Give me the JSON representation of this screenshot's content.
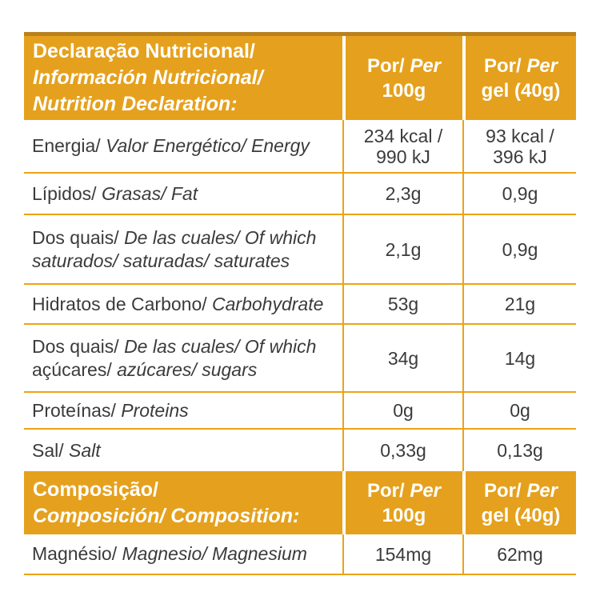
{
  "colors": {
    "header_fill": "#e5a11d",
    "header_top_strip": "#b9811f",
    "rule_orange": "#eda315",
    "text_dark": "#3b3b3a",
    "text_header": "#ffffff",
    "background": "#ffffff"
  },
  "table": {
    "header1": {
      "lines": [
        "Declaração Nutricional/",
        "Información Nutricional/",
        "Nutrition Declaration:"
      ],
      "col_per100": {
        "r": "Por/ ",
        "i": "Per",
        "l2": "100g"
      },
      "col_pergel": {
        "r": "Por/ ",
        "i": "Per",
        "l2": "gel (40g)"
      }
    },
    "header2": {
      "lines": [
        "Composição/",
        "Composición/ Composition:"
      ],
      "col_per100": {
        "r": "Por/ ",
        "i": "Per",
        "l2": "100g"
      },
      "col_pergel": {
        "r": "Por/ ",
        "i": "Per",
        "l2": "gel (40g)"
      }
    },
    "rows": [
      {
        "id": "energy",
        "segments": [
          {
            "t": "Energia/ "
          },
          {
            "t": "Valor Energético/ Energy"
          }
        ],
        "per100": [
          "234 kcal /",
          "990 kJ"
        ],
        "perGel": [
          "93 kcal /",
          "396 kJ"
        ]
      },
      {
        "id": "fat",
        "segments": [
          {
            "t": "Lípidos/ "
          },
          {
            "t": "Grasas/ Fat"
          }
        ],
        "per100": "2,3g",
        "perGel": "0,9g"
      },
      {
        "id": "saturates",
        "segments": [
          {
            "t": "Dos quais/ "
          },
          {
            "t": "De las cuales/ Of which"
          },
          {
            "t": "saturados/ saturadas/ saturates"
          }
        ],
        "per100": "2,1g",
        "perGel": "0,9g"
      },
      {
        "id": "carbohydrate",
        "segments": [
          {
            "t": "Hidratos de Carbono/ "
          },
          {
            "t": "Carbohydrate"
          }
        ],
        "per100": "53g",
        "perGel": "21g"
      },
      {
        "id": "sugars",
        "segments": [
          {
            "t": "Dos quais/ "
          },
          {
            "t": "De las cuales/ Of which"
          },
          {
            "t": "açúcares/ "
          },
          {
            "t": "azúcares/ sugars"
          }
        ],
        "per100": "34g",
        "perGel": "14g"
      },
      {
        "id": "protein",
        "segments": [
          {
            "t": "Proteínas/ "
          },
          {
            "t": "Proteins"
          }
        ],
        "per100": "0g",
        "perGel": "0g"
      },
      {
        "id": "salt",
        "segments": [
          {
            "t": "Sal/ "
          },
          {
            "t": "Salt"
          }
        ],
        "per100": "0,33g",
        "perGel": "0,13g"
      },
      {
        "id": "magnesium",
        "segments": [
          {
            "t": "Magnésio/ "
          },
          {
            "t": "Magnesio/ Magnesium"
          }
        ],
        "per100": "154mg",
        "perGel": "62mg"
      }
    ]
  }
}
